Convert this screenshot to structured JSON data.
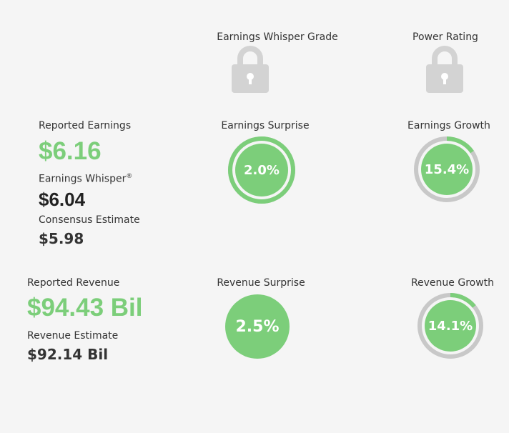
{
  "header": {
    "grade_label": "Earnings Whisper Grade",
    "power_label": "Power Rating"
  },
  "earnings": {
    "reported_label": "Reported Earnings",
    "reported_value": "$6.16",
    "whisper_label": "Earnings Whisper",
    "whisper_mark": "®",
    "whisper_value": "$6.04",
    "consensus_label": "Consensus Estimate",
    "consensus_value": "$5.98",
    "surprise_label": "Earnings Surprise",
    "surprise_value": "2.0%",
    "growth_label": "Earnings Growth",
    "growth_value": "15.4%"
  },
  "revenue": {
    "reported_label": "Reported Revenue",
    "reported_value": "$94.43 Bil",
    "estimate_label": "Revenue Estimate",
    "estimate_value": "$92.14 Bil",
    "surprise_label": "Revenue Surprise",
    "surprise_value": "2.5%",
    "growth_label": "Revenue Growth",
    "growth_value": "14.1%"
  },
  "rings": {
    "earnings_surprise_fraction": 1.0,
    "earnings_growth_fraction": 0.154,
    "revenue_growth_fraction": 0.141
  },
  "colors": {
    "green": "#7cce7a",
    "track": "#c8c8c8",
    "lock": "#d3d3d3"
  },
  "icons": [
    "lock-icon",
    "lock-icon"
  ]
}
